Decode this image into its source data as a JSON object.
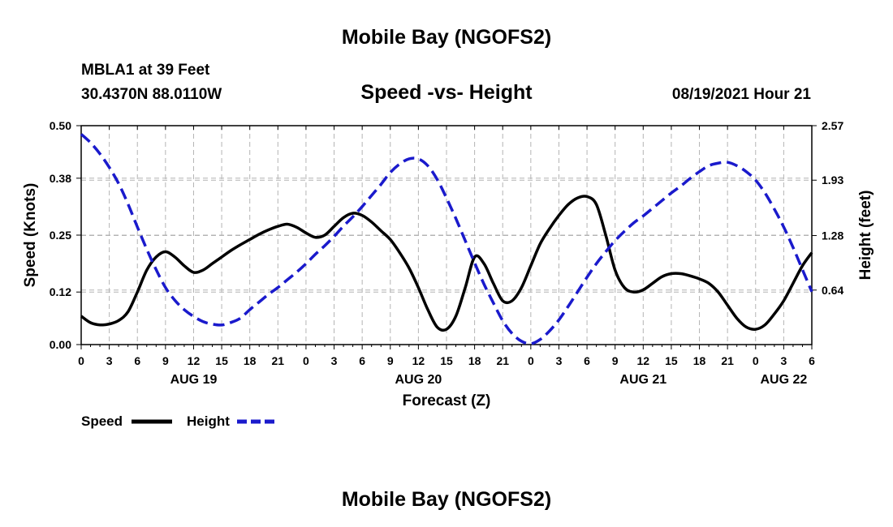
{
  "page": {
    "top_title": "Mobile Bay (NGOFS2)",
    "bottom_title": "Mobile Bay (NGOFS2)",
    "station": "MBLA1 at 39 Feet",
    "coords": "30.4370N  88.0110W",
    "subtitle": "Speed -vs- Height",
    "datetime": "08/19/2021 Hour 21"
  },
  "colors": {
    "speed": "#000000",
    "height": "#1a1acc",
    "grid": "#b4b4b4"
  },
  "chart_data": {
    "type": "line",
    "title": "Speed -vs- Height",
    "xlabel": "Forecast (Z)",
    "ylabel": "Speed (Knots)",
    "y2label": "Height (feet)",
    "x_unit": "hours from 00Z Aug 19",
    "xlim": [
      0,
      78
    ],
    "ylim": [
      0,
      0.5
    ],
    "y2lim": [
      0,
      2.57
    ],
    "y_ticks": [
      0.0,
      0.12,
      0.25,
      0.38,
      0.5
    ],
    "y_tick_labels": [
      "0.00",
      "0.12",
      "0.25",
      "0.38",
      "0.50"
    ],
    "y2_ticks": [
      0.64,
      1.28,
      1.93,
      2.57
    ],
    "y2_tick_labels": [
      "0.64",
      "1.28",
      "1.93",
      "2.57"
    ],
    "x_ticks": [
      0,
      3,
      6,
      9,
      12,
      15,
      18,
      21,
      24,
      27,
      30,
      33,
      36,
      39,
      42,
      45,
      48,
      51,
      54,
      57,
      60,
      63,
      66,
      69,
      72,
      75,
      78
    ],
    "x_tick_labels": [
      "0",
      "3",
      "6",
      "9",
      "12",
      "15",
      "18",
      "21",
      "0",
      "3",
      "6",
      "9",
      "12",
      "15",
      "18",
      "21",
      "0",
      "3",
      "6",
      "9",
      "12",
      "15",
      "18",
      "21",
      "0",
      "3",
      "6"
    ],
    "date_labels": [
      {
        "x": 12,
        "label": "AUG 19"
      },
      {
        "x": 36,
        "label": "AUG 20"
      },
      {
        "x": 60,
        "label": "AUG 21"
      },
      {
        "x": 75,
        "label": "AUG 22"
      }
    ],
    "grid": true,
    "legend_position": "bottom-left",
    "series": [
      {
        "name": "Speed",
        "axis": "left",
        "style": "solid",
        "x": [
          0,
          1,
          2,
          3,
          4,
          5,
          6,
          7,
          8,
          9,
          10,
          11,
          12,
          13,
          14,
          15,
          16,
          17,
          18,
          19,
          20,
          21,
          22,
          23,
          24,
          25,
          26,
          27,
          28,
          29,
          30,
          31,
          32,
          33,
          34,
          35,
          36,
          37,
          38,
          39,
          40,
          41,
          42,
          43,
          44,
          45,
          46,
          47,
          48,
          49,
          50,
          51,
          52,
          53,
          54,
          55,
          56,
          57,
          58,
          59,
          60,
          61,
          62,
          63,
          64,
          65,
          66,
          67,
          68,
          69,
          70,
          71,
          72,
          73,
          74,
          75,
          76,
          77,
          78
        ],
        "values": [
          0.065,
          0.05,
          0.045,
          0.047,
          0.055,
          0.075,
          0.12,
          0.17,
          0.2,
          0.212,
          0.2,
          0.18,
          0.165,
          0.17,
          0.185,
          0.2,
          0.215,
          0.228,
          0.24,
          0.252,
          0.262,
          0.27,
          0.275,
          0.268,
          0.255,
          0.245,
          0.25,
          0.27,
          0.29,
          0.3,
          0.295,
          0.28,
          0.26,
          0.24,
          0.21,
          0.175,
          0.13,
          0.08,
          0.04,
          0.035,
          0.065,
          0.13,
          0.2,
          0.185,
          0.14,
          0.1,
          0.1,
          0.13,
          0.18,
          0.23,
          0.265,
          0.295,
          0.32,
          0.335,
          0.338,
          0.32,
          0.25,
          0.17,
          0.13,
          0.12,
          0.125,
          0.14,
          0.155,
          0.162,
          0.162,
          0.157,
          0.15,
          0.14,
          0.12,
          0.09,
          0.06,
          0.04,
          0.035,
          0.045,
          0.07,
          0.1,
          0.14,
          0.18,
          0.21
        ]
      },
      {
        "name": "Height",
        "axis": "right",
        "style": "dashed",
        "x": [
          0,
          1,
          2,
          3,
          4,
          5,
          6,
          7,
          8,
          9,
          10,
          11,
          12,
          13,
          14,
          15,
          16,
          17,
          18,
          19,
          20,
          21,
          22,
          23,
          24,
          25,
          26,
          27,
          28,
          29,
          30,
          31,
          32,
          33,
          34,
          35,
          36,
          37,
          38,
          39,
          40,
          41,
          42,
          43,
          44,
          45,
          46,
          47,
          48,
          49,
          50,
          51,
          52,
          53,
          54,
          55,
          56,
          57,
          58,
          59,
          60,
          61,
          62,
          63,
          64,
          65,
          66,
          67,
          68,
          69,
          70,
          71,
          72,
          73,
          74,
          75,
          76,
          77,
          78
        ],
        "values": [
          2.47,
          2.37,
          2.24,
          2.08,
          1.89,
          1.65,
          1.38,
          1.12,
          0.88,
          0.67,
          0.52,
          0.41,
          0.33,
          0.27,
          0.24,
          0.23,
          0.26,
          0.31,
          0.41,
          0.5,
          0.59,
          0.67,
          0.76,
          0.85,
          0.95,
          1.06,
          1.16,
          1.27,
          1.39,
          1.5,
          1.62,
          1.75,
          1.88,
          2.02,
          2.12,
          2.18,
          2.18,
          2.1,
          1.94,
          1.72,
          1.48,
          1.22,
          0.96,
          0.71,
          0.49,
          0.28,
          0.13,
          0.04,
          0.01,
          0.06,
          0.16,
          0.29,
          0.45,
          0.62,
          0.79,
          0.95,
          1.09,
          1.22,
          1.33,
          1.43,
          1.51,
          1.6,
          1.69,
          1.78,
          1.86,
          1.95,
          2.03,
          2.1,
          2.13,
          2.14,
          2.1,
          2.03,
          1.93,
          1.78,
          1.59,
          1.38,
          1.14,
          0.88,
          0.62
        ]
      }
    ]
  }
}
